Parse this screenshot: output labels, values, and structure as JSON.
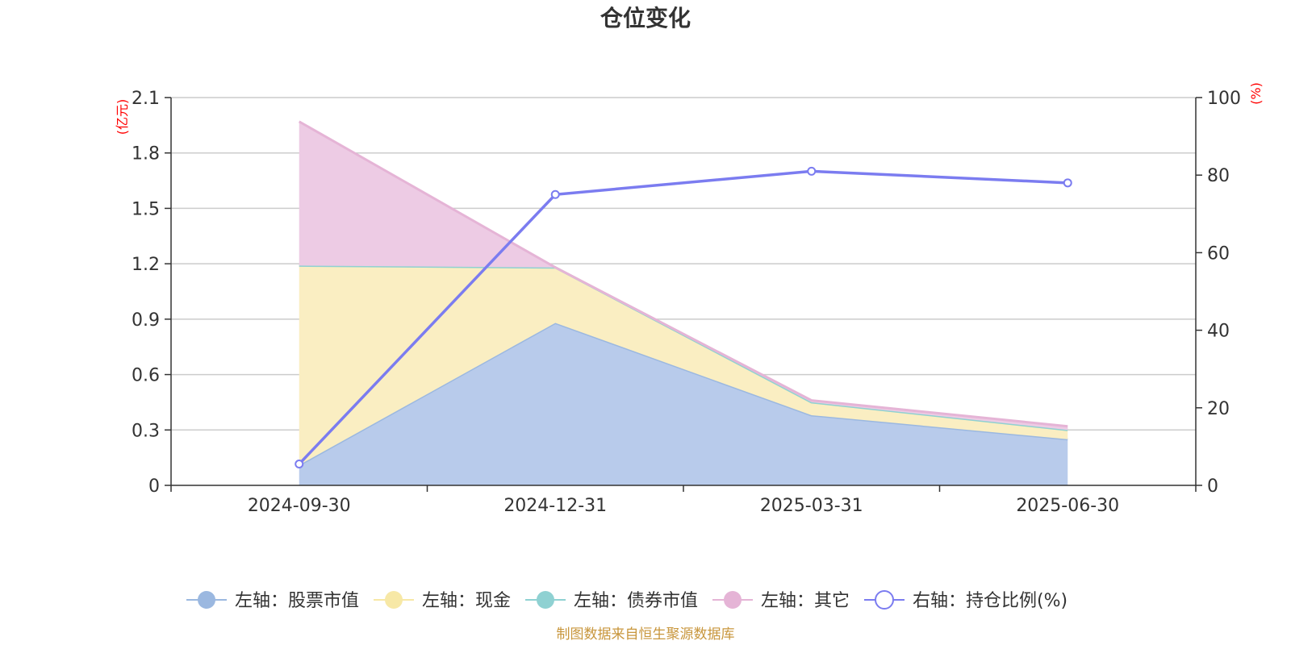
{
  "chart_data": {
    "type": "area",
    "title": "仓位变化",
    "categories": [
      "2024-09-30",
      "2024-12-31",
      "2025-03-31",
      "2025-06-30"
    ],
    "left_axis": {
      "unit": "(亿元)",
      "min": 0,
      "max": 2.1,
      "ticks": [
        "0",
        "0.3",
        "0.6",
        "0.9",
        "1.2",
        "1.5",
        "1.8",
        "2.1"
      ]
    },
    "right_axis": {
      "unit": "(%)",
      "min": 0,
      "max": 100,
      "ticks": [
        "0",
        "20",
        "40",
        "60",
        "80",
        "100"
      ]
    },
    "series": [
      {
        "name": "左轴：股票市值",
        "axis": "left",
        "type": "area",
        "color": "#9bb8e0",
        "fill": "#b8cbeb",
        "values": [
          0.11,
          0.88,
          0.38,
          0.25
        ]
      },
      {
        "name": "左轴：现金",
        "axis": "left",
        "type": "area",
        "color": "#f7e8a6",
        "fill": "#faeec2",
        "values": [
          1.08,
          0.3,
          0.07,
          0.05
        ]
      },
      {
        "name": "左轴：债券市值",
        "axis": "left",
        "type": "area",
        "color": "#8fd1d2",
        "fill": "#b4e1e1",
        "values": [
          0,
          0,
          0,
          0
        ]
      },
      {
        "name": "左轴：其它",
        "axis": "left",
        "type": "area",
        "color": "#e5b4d6",
        "fill": "#edcbe4",
        "values": [
          0.78,
          0,
          0.01,
          0.02
        ]
      },
      {
        "name": "右轴：持仓比例(%)",
        "axis": "right",
        "type": "line",
        "color": "#7b7cf0",
        "values": [
          5.5,
          75,
          81,
          78
        ]
      }
    ],
    "grid": true,
    "legend_position": "bottom"
  },
  "source_text": "制图数据来自恒生聚源数据库"
}
